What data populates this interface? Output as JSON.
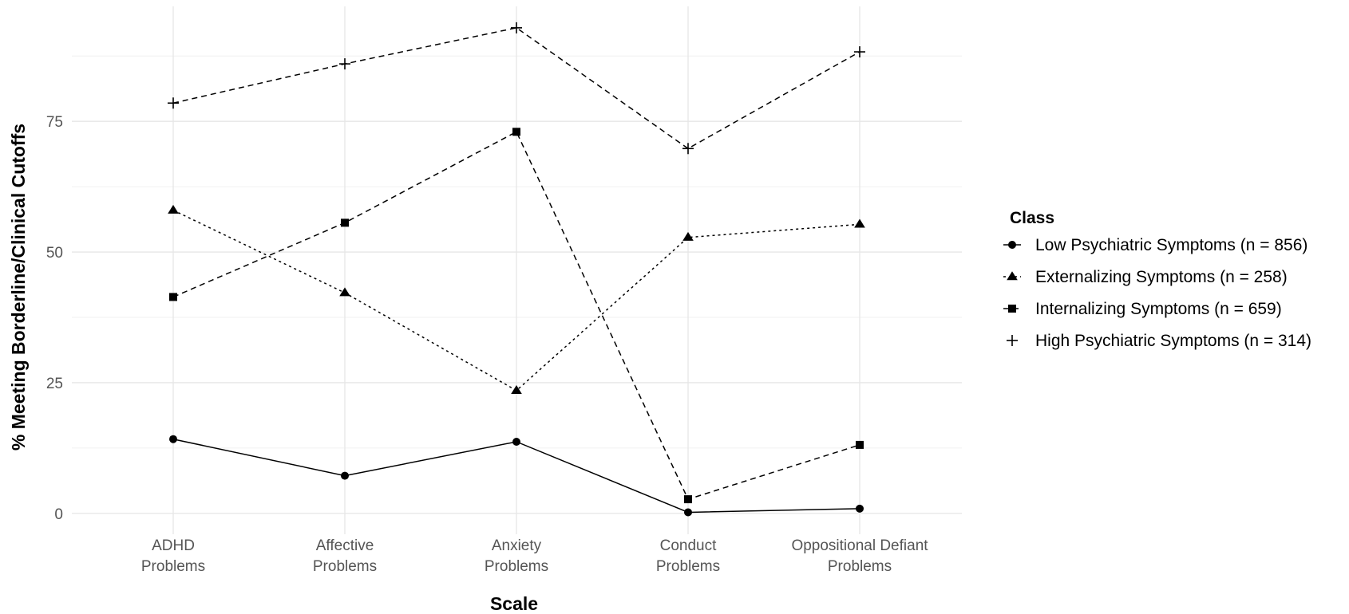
{
  "chart_data": {
    "type": "line",
    "title": "",
    "xlabel": "Scale",
    "ylabel": "% Meeting Borderline/Clinical Cutoffs",
    "categories": [
      [
        "ADHD",
        "Problems"
      ],
      [
        "Affective",
        "Problems"
      ],
      [
        "Anxiety",
        "Problems"
      ],
      [
        "Conduct",
        "Problems"
      ],
      [
        "Oppositional Defiant",
        "Problems"
      ]
    ],
    "ylim": [
      -4,
      97
    ],
    "yticks": [
      0,
      25,
      50,
      75
    ],
    "grid": true,
    "legend": {
      "title": "Class",
      "position": "right"
    },
    "series": [
      {
        "name": "Low Psychiatric Symptoms (n = 856)",
        "marker": "circle",
        "linestyle": "solid",
        "values": [
          14.2,
          7.2,
          13.7,
          0.2,
          0.9
        ]
      },
      {
        "name": "Externalizing Symptoms (n = 258)",
        "marker": "triangle",
        "linestyle": "dotted",
        "values": [
          58.0,
          42.2,
          23.5,
          52.8,
          55.3
        ]
      },
      {
        "name": "Internalizing Symptoms (n = 659)",
        "marker": "square",
        "linestyle": "dashed",
        "values": [
          41.4,
          55.6,
          73.0,
          2.7,
          13.1
        ]
      },
      {
        "name": "High Psychiatric Symptoms (n = 314)",
        "marker": "plus",
        "linestyle": "dashed",
        "values": [
          78.5,
          86.0,
          92.9,
          69.8,
          88.3
        ]
      }
    ],
    "colors": {
      "line": "#000000",
      "grid": "#e6e6e6",
      "tick_text": "#555555"
    }
  }
}
